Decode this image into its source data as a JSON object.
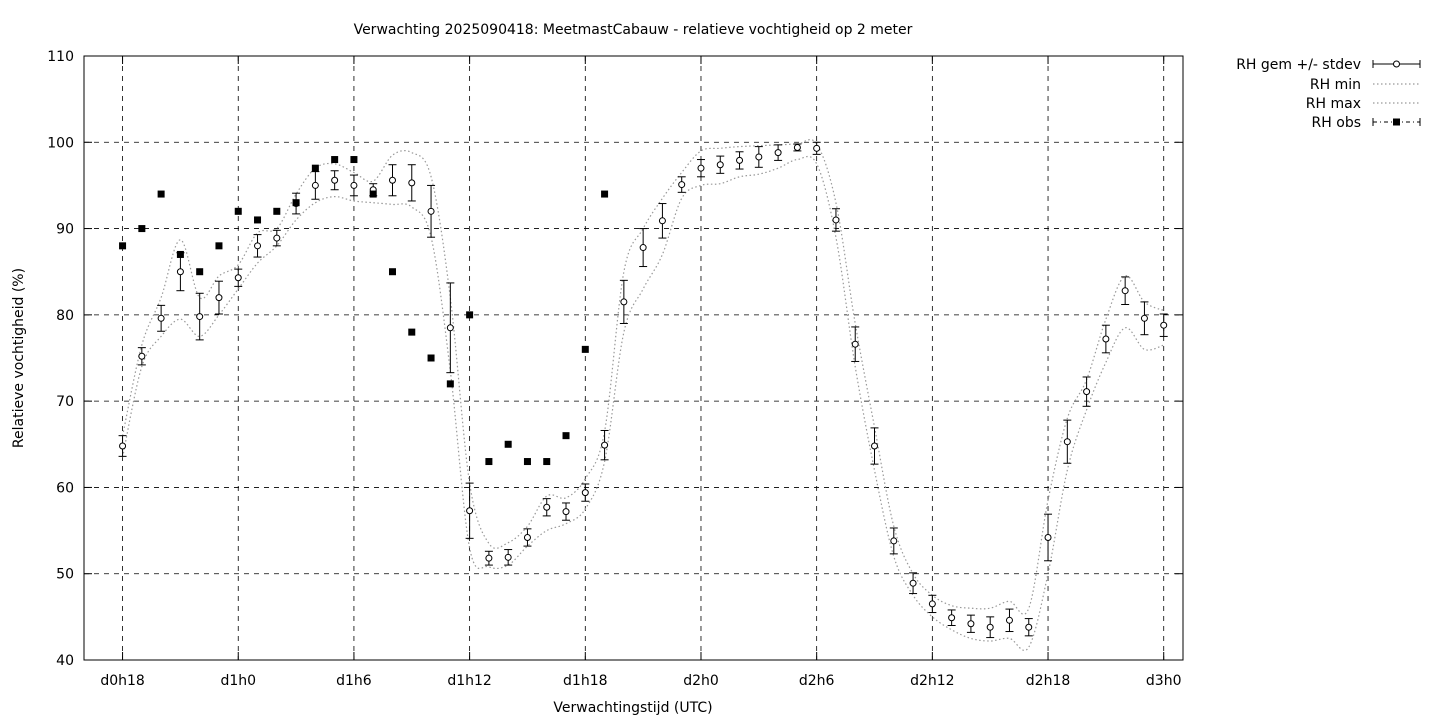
{
  "chart_data": {
    "type": "line",
    "title": "Verwachting 2025090418: MeetmastCabauw - relatieve vochtigheid op 2 meter",
    "xlabel": "Verwachtingstijd (UTC)",
    "ylabel": "Relatieve vochtigheid (%)",
    "xlim": [
      16,
      73
    ],
    "ylim": [
      40,
      110
    ],
    "grid": true,
    "legend_position": "outside-top-right",
    "x_ticks": [
      {
        "x": 18,
        "label": "d0h18"
      },
      {
        "x": 24,
        "label": "d1h0"
      },
      {
        "x": 30,
        "label": "d1h6"
      },
      {
        "x": 36,
        "label": "d1h12"
      },
      {
        "x": 42,
        "label": "d1h18"
      },
      {
        "x": 48,
        "label": "d2h0"
      },
      {
        "x": 54,
        "label": "d2h6"
      },
      {
        "x": 60,
        "label": "d2h12"
      },
      {
        "x": 66,
        "label": "d2h18"
      },
      {
        "x": 72,
        "label": "d3h0"
      }
    ],
    "y_ticks": [
      40,
      50,
      60,
      70,
      80,
      90,
      100,
      110
    ],
    "series": [
      {
        "name": "RH gem +/- stdev",
        "style": "points-errorbars",
        "x": [
          18,
          19,
          20,
          21,
          22,
          23,
          24,
          25,
          26,
          27,
          28,
          29,
          30,
          31,
          32,
          33,
          34,
          35,
          36,
          37,
          38,
          39,
          40,
          41,
          42,
          43,
          44,
          45,
          46,
          47,
          48,
          49,
          50,
          51,
          52,
          53,
          54,
          55,
          56,
          57,
          58,
          59,
          60,
          61,
          62,
          63,
          64,
          65,
          66,
          67,
          68,
          69,
          70,
          71,
          72
        ],
        "values": [
          64.8,
          75.2,
          79.6,
          85.0,
          79.8,
          82.0,
          84.3,
          88.0,
          88.9,
          92.9,
          95.0,
          95.6,
          95.0,
          94.5,
          95.6,
          95.3,
          92.0,
          78.5,
          57.3,
          51.8,
          51.9,
          54.2,
          57.7,
          57.2,
          59.4,
          64.9,
          81.5,
          87.8,
          90.9,
          95.1,
          97.0,
          97.4,
          97.9,
          98.3,
          98.8,
          99.4,
          99.3,
          91.0,
          76.6,
          64.8,
          53.8,
          48.9,
          46.5,
          44.9,
          44.2,
          43.8,
          44.6,
          43.8,
          54.2,
          65.3,
          71.1,
          77.2,
          82.8,
          79.6,
          78.8
        ],
        "stdev": [
          1.2,
          1.0,
          1.5,
          2.2,
          2.7,
          1.9,
          1.0,
          1.3,
          0.9,
          1.2,
          1.6,
          1.1,
          1.2,
          0.7,
          1.8,
          2.1,
          3.0,
          5.2,
          3.2,
          0.8,
          0.9,
          1.0,
          1.0,
          1.0,
          1.0,
          1.7,
          2.5,
          2.2,
          2.0,
          0.9,
          1.0,
          1.0,
          1.0,
          1.2,
          0.9,
          0.4,
          0.7,
          1.3,
          2.0,
          2.1,
          1.5,
          1.2,
          1.0,
          0.9,
          1.0,
          1.2,
          1.3,
          1.0,
          2.7,
          2.5,
          1.7,
          1.6,
          1.6,
          1.9,
          1.3
        ]
      },
      {
        "name": "RH min",
        "style": "dotted",
        "x": [
          18,
          19,
          20,
          21,
          22,
          23,
          24,
          25,
          26,
          27,
          28,
          29,
          30,
          31,
          32,
          33,
          34,
          35,
          36,
          37,
          38,
          39,
          40,
          41,
          42,
          43,
          44,
          45,
          46,
          47,
          48,
          49,
          50,
          51,
          52,
          53,
          54,
          55,
          56,
          57,
          58,
          59,
          60,
          61,
          62,
          63,
          64,
          65,
          66,
          67,
          68,
          69,
          70,
          71,
          72
        ],
        "values": [
          63.5,
          74.0,
          77.5,
          79.5,
          77.5,
          80.0,
          83.0,
          86.0,
          88.0,
          91.0,
          93.0,
          93.7,
          93.2,
          93.0,
          92.8,
          92.5,
          89.0,
          73.5,
          53.0,
          50.8,
          51.0,
          53.2,
          55.0,
          55.8,
          57.5,
          63.0,
          78.0,
          83.0,
          87.0,
          93.5,
          95.0,
          95.2,
          96.0,
          96.3,
          97.0,
          98.0,
          97.5,
          89.0,
          74.0,
          62.0,
          52.0,
          47.5,
          45.0,
          43.5,
          42.5,
          42.2,
          42.5,
          41.5,
          50.0,
          62.0,
          69.0,
          74.5,
          78.5,
          76.0,
          76.5
        ]
      },
      {
        "name": "RH max",
        "style": "dotted",
        "x": [
          18,
          19,
          20,
          21,
          22,
          23,
          24,
          25,
          26,
          27,
          28,
          29,
          30,
          31,
          32,
          33,
          34,
          35,
          36,
          37,
          38,
          39,
          40,
          41,
          42,
          43,
          44,
          45,
          46,
          47,
          48,
          49,
          50,
          51,
          52,
          53,
          54,
          55,
          56,
          57,
          58,
          59,
          60,
          61,
          62,
          63,
          64,
          65,
          66,
          67,
          68,
          69,
          70,
          71,
          72
        ],
        "values": [
          66.0,
          76.5,
          82.0,
          88.7,
          82.0,
          84.5,
          85.8,
          89.5,
          90.0,
          94.0,
          97.0,
          97.5,
          96.5,
          95.5,
          98.5,
          98.8,
          96.0,
          82.0,
          60.5,
          53.5,
          53.6,
          55.5,
          59.0,
          58.8,
          61.0,
          66.5,
          85.0,
          90.0,
          93.5,
          96.5,
          99.0,
          99.3,
          99.5,
          99.6,
          99.7,
          99.8,
          99.8,
          93.0,
          79.0,
          67.0,
          55.5,
          50.0,
          47.5,
          46.3,
          46.0,
          46.0,
          46.8,
          46.0,
          58.5,
          68.0,
          72.5,
          79.5,
          84.5,
          81.5,
          80.5
        ]
      },
      {
        "name": "RH obs",
        "style": "points",
        "x": [
          18,
          19,
          20,
          21,
          22,
          23,
          24,
          25,
          26,
          27,
          28,
          29,
          30,
          31,
          32,
          33,
          34,
          35,
          36,
          37,
          38,
          39,
          40,
          41,
          42,
          43
        ],
        "values": [
          88,
          90,
          94,
          87,
          85,
          88,
          92,
          91,
          92,
          93,
          97,
          98,
          98,
          94,
          85,
          78,
          75,
          72,
          80,
          63,
          65,
          63,
          63,
          66,
          76,
          94
        ]
      }
    ]
  }
}
